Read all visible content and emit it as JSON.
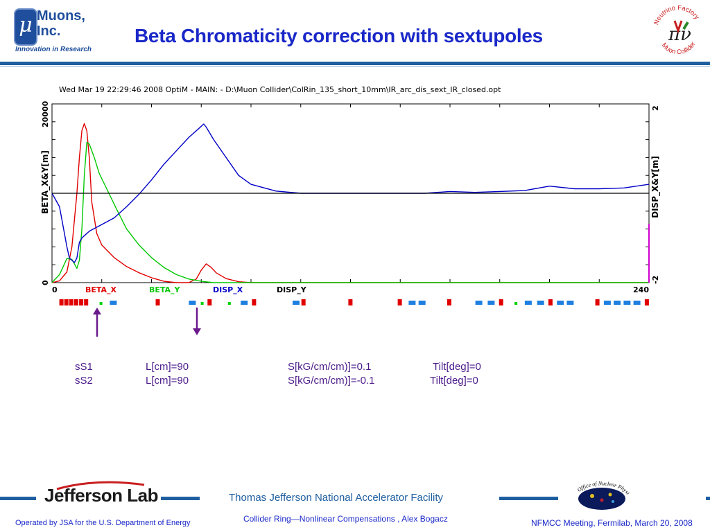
{
  "header": {
    "logo_symbol": "μ",
    "logo_name": "Muons,\nInc.",
    "logo_tagline": "Innovation in Research",
    "title": "Beta Chromaticity correction with sextupoles",
    "right_logo_text_top": "Neutrino Factory",
    "right_logo_text_bottom": "Muon Collider",
    "right_logo_symbol": "πν"
  },
  "chart_data": {
    "type": "line",
    "title": "Wed Mar 19 22:29:46 2008    OptiM - MAIN: - D:\\Muon Collider\\ColRin_135_short_10mm\\IR_arc_dis_sext_IR_closed.opt",
    "xlabel": "",
    "ylabel_left": "BETA_X&Y[m]",
    "ylabel_right": "DISP_X&Y[m]",
    "xlim": [
      0,
      240
    ],
    "ylim_left": [
      0,
      20000
    ],
    "ylim_right": [
      -2,
      2
    ],
    "x_ticks": [
      "0",
      "240"
    ],
    "y_left_ticks": [
      "0",
      "20000"
    ],
    "y_right_ticks": [
      "-2",
      "2"
    ],
    "grid": false,
    "legend": [
      "BETA_X",
      "BETA_Y",
      "DISP_X",
      "DISP_Y"
    ],
    "legend_colors": [
      "#e00000",
      "#00c800",
      "#0000c8",
      "#000000"
    ],
    "series": [
      {
        "name": "BETA_X",
        "axis": "left",
        "color": "#e00000",
        "x": [
          0,
          3,
          6,
          8,
          9,
          10,
          11,
          12,
          13,
          14,
          15,
          16,
          18,
          20,
          25,
          30,
          35,
          40,
          45,
          50,
          55,
          58,
          60,
          62,
          64,
          66,
          70,
          75,
          80,
          90,
          240
        ],
        "y": [
          0,
          200,
          1200,
          4000,
          7000,
          10000,
          14000,
          17000,
          17800,
          17000,
          14000,
          9000,
          5500,
          4200,
          2800,
          1800,
          1100,
          550,
          150,
          0,
          0,
          400,
          1400,
          2100,
          1700,
          1100,
          450,
          100,
          0,
          0,
          0
        ]
      },
      {
        "name": "BETA_Y",
        "axis": "left",
        "color": "#00c800",
        "x": [
          0,
          3,
          6,
          8,
          10,
          11,
          12,
          13,
          14,
          15,
          17,
          19,
          22,
          26,
          30,
          35,
          40,
          45,
          50,
          55,
          60,
          65,
          70,
          240
        ],
        "y": [
          0,
          900,
          2700,
          2600,
          1600,
          2500,
          6000,
          12000,
          15700,
          15500,
          14000,
          12200,
          10500,
          8200,
          6000,
          4200,
          2800,
          1700,
          900,
          400,
          150,
          0,
          0,
          0
        ]
      },
      {
        "name": "DISP_X",
        "axis": "right",
        "color": "#0000c8",
        "x": [
          0,
          3,
          6,
          7,
          9,
          10,
          11,
          12,
          13,
          15,
          20,
          25,
          30,
          35,
          40,
          45,
          50,
          55,
          60,
          61,
          62,
          65,
          70,
          75,
          80,
          90,
          100,
          110,
          120,
          150,
          160,
          170,
          180,
          190,
          200,
          210,
          220,
          230,
          240
        ],
        "y": [
          0,
          -0.3,
          -1.2,
          -1.45,
          -1.55,
          -1.45,
          -1.1,
          -1.0,
          -0.95,
          -0.85,
          -0.7,
          -0.55,
          -0.3,
          -0.02,
          0.3,
          0.65,
          0.95,
          1.25,
          1.5,
          1.55,
          1.48,
          1.2,
          0.8,
          0.4,
          0.2,
          0.05,
          0,
          0,
          0,
          0,
          0.04,
          0.02,
          0.04,
          0.06,
          0.16,
          0.1,
          0.1,
          0.12,
          0.2
        ]
      },
      {
        "name": "DISP_Y",
        "axis": "right",
        "color": "#000000",
        "x": [
          0,
          240
        ],
        "y": [
          0,
          0
        ]
      }
    ],
    "right_axis_magenta_segment": true
  },
  "lattice": {
    "elements": [
      {
        "type": "dipole",
        "x": 1
      },
      {
        "type": "dipole",
        "x": 3
      },
      {
        "type": "dipole",
        "x": 5
      },
      {
        "type": "dipole",
        "x": 7
      },
      {
        "type": "dipole",
        "x": 9
      },
      {
        "type": "dipole",
        "x": 11
      },
      {
        "type": "sextupole",
        "x": 17
      },
      {
        "type": "quad",
        "x": 22
      },
      {
        "type": "dipole",
        "x": 40
      },
      {
        "type": "quad",
        "x": 54
      },
      {
        "type": "sextupole",
        "x": 58
      },
      {
        "type": "dipole",
        "x": 61
      },
      {
        "type": "sextupole",
        "x": 69
      },
      {
        "type": "quad",
        "x": 75
      },
      {
        "type": "dipole",
        "x": 79
      },
      {
        "type": "quad",
        "x": 96
      },
      {
        "type": "dipole",
        "x": 99
      },
      {
        "type": "dipole",
        "x": 118
      },
      {
        "type": "dipole",
        "x": 138
      },
      {
        "type": "quad",
        "x": 143
      },
      {
        "type": "quad",
        "x": 147
      },
      {
        "type": "dipole",
        "x": 158
      },
      {
        "type": "quad",
        "x": 170
      },
      {
        "type": "quad",
        "x": 175
      },
      {
        "type": "dipole",
        "x": 179
      },
      {
        "type": "sextupole",
        "x": 185
      },
      {
        "type": "quad",
        "x": 190
      },
      {
        "type": "quad",
        "x": 195
      },
      {
        "type": "dipole",
        "x": 199
      },
      {
        "type": "quad",
        "x": 203
      },
      {
        "type": "quad",
        "x": 207
      },
      {
        "type": "dipole",
        "x": 218
      },
      {
        "type": "quad",
        "x": 222
      },
      {
        "type": "quad",
        "x": 226
      },
      {
        "type": "quad",
        "x": 230
      },
      {
        "type": "quad",
        "x": 234
      },
      {
        "type": "dipole",
        "x": 238
      }
    ],
    "colors": {
      "dipole": "#e00000",
      "quad": "#1e7fe0",
      "sextupole": "#00d000"
    }
  },
  "params": {
    "rows": [
      {
        "name": "sS1",
        "length": "L[cm]=90",
        "strength": "S[kG/cm/cm)]=0.1",
        "tilt": "Tilt[deg]=0"
      },
      {
        "name": "sS2",
        "length": "L[cm]=90",
        "strength": "S[kG/cm/cm)]=-0.1",
        "tilt": "Tilt[deg]=0"
      }
    ]
  },
  "footer": {
    "lab_logo": "Jefferson Lab",
    "center": "Thomas Jefferson National Accelerator Facility",
    "talk": "Collider Ring—Nonlinear Compensations , Alex Bogacz",
    "left": "Operated by JSA for the U.S. Department of Energy",
    "right": "NFMCC Meeting, Fermilab, March 20, 2008",
    "right_logo_text": "Office of Nuclear Physics"
  },
  "colors": {
    "title_blue": "#1a28c8",
    "rule_blue": "#1f5fa0",
    "arrow_purple": "#6a1a8c"
  }
}
